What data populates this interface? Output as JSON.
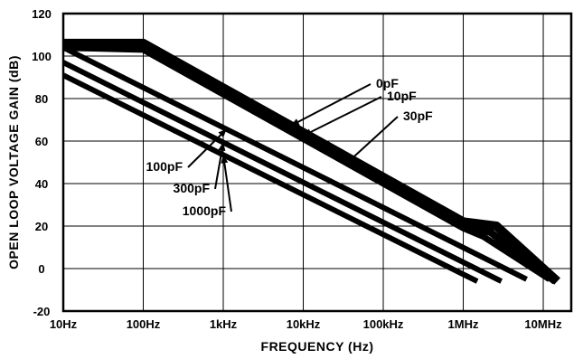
{
  "chart_data": {
    "type": "line",
    "xlabel": "FREQUENCY (Hz)",
    "ylabel": "OPEN LOOP VOLTAGE GAIN (dB)",
    "xscale": "log",
    "xlim": [
      10,
      10000000
    ],
    "ylim": [
      -20,
      120
    ],
    "x_ticks": [
      10,
      100,
      1000,
      10000,
      100000,
      1000000,
      10000000
    ],
    "x_tick_labels": [
      "10Hz",
      "100Hz",
      "1kHz",
      "10kHz",
      "100kHz",
      "1MHz",
      "10MHz"
    ],
    "y_ticks": [
      -20,
      0,
      20,
      40,
      60,
      80,
      100,
      120
    ],
    "y_tick_labels": [
      "-20",
      "0",
      "20",
      "40",
      "60",
      "80",
      "100",
      "120"
    ],
    "grid": true,
    "series": [
      {
        "name": "0pF",
        "x": [
          10,
          100,
          1000000,
          2600000,
          15000000
        ],
        "y": [
          106,
          106,
          22,
          20,
          -6
        ]
      },
      {
        "name": "10pF",
        "x": [
          10,
          100,
          1000000,
          2200000,
          14000000
        ],
        "y": [
          104,
          104,
          21,
          17,
          -6
        ]
      },
      {
        "name": "30pF",
        "x": [
          10,
          100,
          1000000,
          1800000,
          12000000
        ],
        "y": [
          104,
          103,
          19,
          15,
          -5
        ]
      },
      {
        "name": "100pF",
        "x": [
          10,
          6200000
        ],
        "y": [
          104,
          -5
        ]
      },
      {
        "name": "300pF",
        "x": [
          10,
          3000000
        ],
        "y": [
          97,
          -6
        ]
      },
      {
        "name": "1000pF",
        "x": [
          10,
          1500000
        ],
        "y": [
          91,
          -6
        ]
      }
    ]
  }
}
